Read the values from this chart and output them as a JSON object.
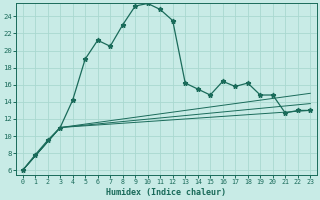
{
  "xlabel": "Humidex (Indice chaleur)",
  "background_color": "#c8ebe6",
  "grid_color": "#aad8d0",
  "line_color": "#1a6b5a",
  "xlim": [
    -0.5,
    23.5
  ],
  "ylim": [
    5.5,
    25.5
  ],
  "xticks": [
    0,
    1,
    2,
    3,
    4,
    5,
    6,
    7,
    8,
    9,
    10,
    11,
    12,
    13,
    14,
    15,
    16,
    17,
    18,
    19,
    20,
    21,
    22,
    23
  ],
  "yticks": [
    6,
    8,
    10,
    12,
    14,
    16,
    18,
    20,
    22,
    24
  ],
  "series": [
    {
      "x": [
        0,
        1,
        2,
        3,
        4,
        5,
        6,
        7,
        8,
        9,
        10,
        11,
        12,
        13,
        14,
        15,
        16,
        17,
        18,
        19,
        20,
        21,
        22,
        23
      ],
      "y": [
        6.0,
        7.8,
        9.5,
        11.0,
        14.2,
        19.0,
        21.2,
        20.5,
        23.0,
        25.2,
        25.5,
        24.8,
        23.5,
        16.2,
        15.5,
        14.8,
        16.4,
        15.8,
        16.2,
        14.8,
        14.8,
        12.7,
        13.0,
        13.0
      ],
      "marker": true
    },
    {
      "x": [
        0,
        3,
        23
      ],
      "y": [
        6.0,
        11.0,
        15.0
      ],
      "marker": false
    },
    {
      "x": [
        0,
        3,
        23
      ],
      "y": [
        6.0,
        11.0,
        13.8
      ],
      "marker": false
    },
    {
      "x": [
        0,
        3,
        23
      ],
      "y": [
        6.0,
        11.0,
        13.0
      ],
      "marker": false
    }
  ]
}
